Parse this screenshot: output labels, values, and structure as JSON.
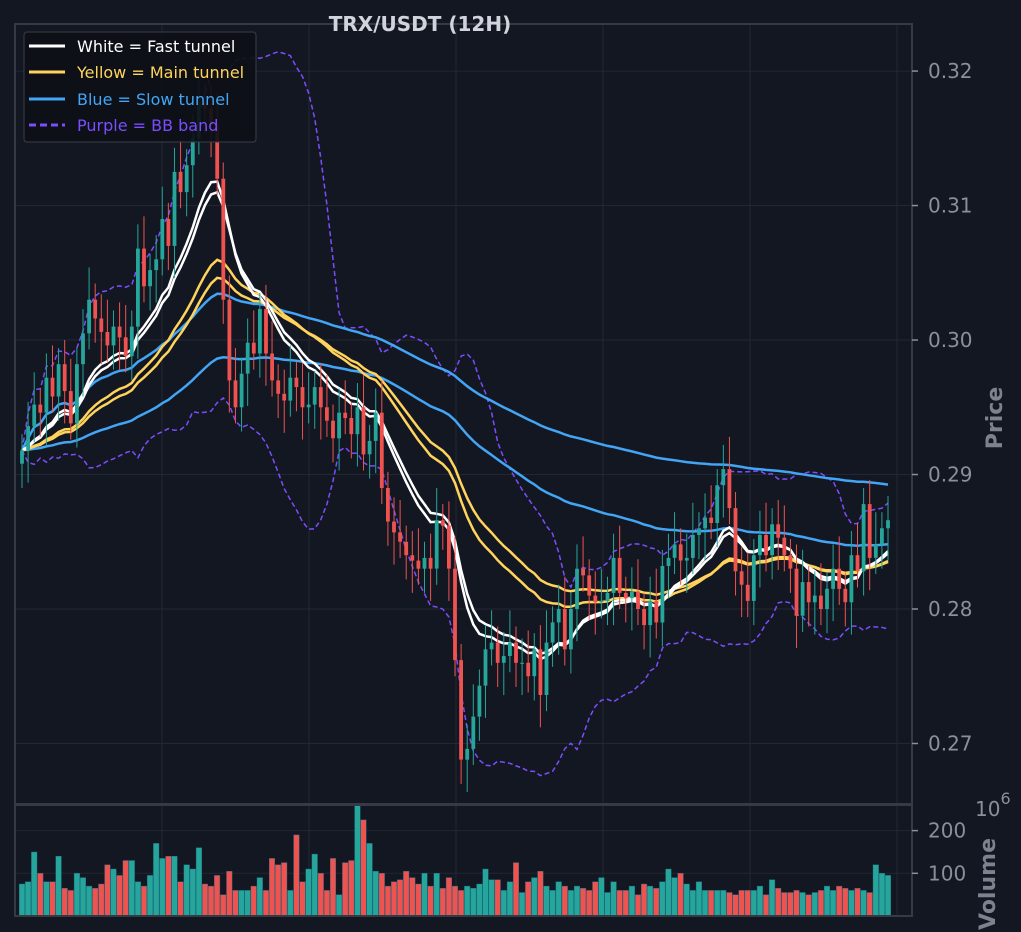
{
  "colors": {
    "background": "#131722",
    "panel_border": "#363a45",
    "grid": "#232733",
    "bullish": "#26a69a",
    "bearish": "#ef5350",
    "fast_tunnel": "#ffffff",
    "main_tunnel": "#ffd35c",
    "slow_tunnel": "#42a5f5",
    "bb_band": "#7c4dff"
  },
  "chart_data": {
    "type": "candlestick",
    "title": "TRX/USDT (12H)",
    "ylabel": "Price",
    "ylim": [
      0.2655,
      0.3235
    ],
    "yticks": [
      0.27,
      0.28,
      0.29,
      0.3,
      0.31,
      0.32
    ],
    "ytick_labels": [
      "0.27",
      "0.28",
      "0.29",
      "0.30",
      "0.31",
      "0.32"
    ],
    "grid": true,
    "legend_position": "top-left",
    "legend": [
      {
        "label": "White = Fast tunnel",
        "color": "#ffffff",
        "style": "solid"
      },
      {
        "label": "Yellow = Main tunnel",
        "color": "#ffd35c",
        "style": "solid"
      },
      {
        "label": "Blue = Slow tunnel",
        "color": "#42a5f5",
        "style": "solid"
      },
      {
        "label": "Purple = BB band",
        "color": "#7c4dff",
        "style": "dashed"
      }
    ],
    "candles_closes": [
      0.2918,
      0.2936,
      0.2952,
      0.2946,
      0.2972,
      0.2958,
      0.2982,
      0.2962,
      0.2938,
      0.2982,
      0.3005,
      0.303,
      0.3016,
      0.3006,
      0.2996,
      0.301,
      0.3002,
      0.2988,
      0.301,
      0.3068,
      0.304,
      0.3052,
      0.306,
      0.309,
      0.307,
      0.3125,
      0.311,
      0.313,
      0.315,
      0.3178,
      0.3172,
      0.316,
      0.312,
      0.303,
      0.297,
      0.295,
      0.2975,
      0.2998,
      0.299,
      0.3023,
      0.299,
      0.297,
      0.296,
      0.2955,
      0.2972,
      0.2965,
      0.295,
      0.2952,
      0.2965,
      0.295,
      0.294,
      0.2927,
      0.2946,
      0.2942,
      0.293,
      0.295,
      0.2915,
      0.2925,
      0.2946,
      0.289,
      0.2865,
      0.2857,
      0.285,
      0.284,
      0.2836,
      0.283,
      0.2838,
      0.283,
      0.2866,
      0.2862,
      0.283,
      0.2762,
      0.2688,
      0.2696,
      0.272,
      0.2743,
      0.277,
      0.2775,
      0.276,
      0.2765,
      0.2775,
      0.276,
      0.276,
      0.275,
      0.277,
      0.2736,
      0.2775,
      0.279,
      0.28,
      0.277,
      0.28,
      0.283,
      0.2825,
      0.281,
      0.2805,
      0.2806,
      0.2812,
      0.2838,
      0.2812,
      0.2808,
      0.2813,
      0.28,
      0.2788,
      0.2806,
      0.279,
      0.2832,
      0.2838,
      0.2848,
      0.2836,
      0.2838,
      0.2855,
      0.286,
      0.2868,
      0.2864,
      0.2892,
      0.2904,
      0.2875,
      0.2828,
      0.2818,
      0.2806,
      0.284,
      0.2855,
      0.284,
      0.2863,
      0.2853,
      0.284,
      0.283,
      0.2795,
      0.282,
      0.2805,
      0.281,
      0.28,
      0.2815,
      0.283,
      0.2815,
      0.2805,
      0.284,
      0.2828,
      0.2878,
      0.2838,
      0.2848,
      0.286,
      0.2866
    ],
    "volume": {
      "axis_label": "Volume",
      "exponent_label": "10",
      "exponent_power": "6",
      "ylim": [
        0,
        260
      ],
      "yticks": [
        100,
        200
      ],
      "ytick_labels": [
        "100",
        "200"
      ],
      "values": [
        75,
        80,
        150,
        100,
        80,
        80,
        140,
        65,
        60,
        100,
        90,
        70,
        65,
        75,
        120,
        110,
        95,
        130,
        130,
        80,
        70,
        95,
        170,
        135,
        140,
        140,
        80,
        120,
        110,
        160,
        75,
        70,
        95,
        50,
        105,
        60,
        60,
        60,
        70,
        90,
        60,
        135,
        120,
        125,
        60,
        190,
        80,
        110,
        145,
        100,
        60,
        135,
        50,
        125,
        130,
        260,
        225,
        170,
        105,
        100,
        70,
        80,
        85,
        105,
        90,
        75,
        100,
        70,
        100,
        65,
        90,
        70,
        60,
        70,
        65,
        75,
        110,
        85,
        85,
        60,
        80,
        125,
        55,
        80,
        90,
        105,
        70,
        60,
        80,
        70,
        60,
        70,
        65,
        60,
        80,
        90,
        55,
        80,
        60,
        60,
        70,
        50,
        75,
        70,
        65,
        80,
        110,
        90,
        100,
        75,
        60,
        80,
        60,
        60,
        60,
        60,
        55,
        50,
        60,
        60,
        60,
        70,
        50,
        85,
        65,
        55,
        55,
        60,
        55,
        50,
        55,
        60,
        70,
        60,
        70,
        65,
        60,
        65,
        60,
        55,
        120,
        100,
        95
      ]
    }
  }
}
